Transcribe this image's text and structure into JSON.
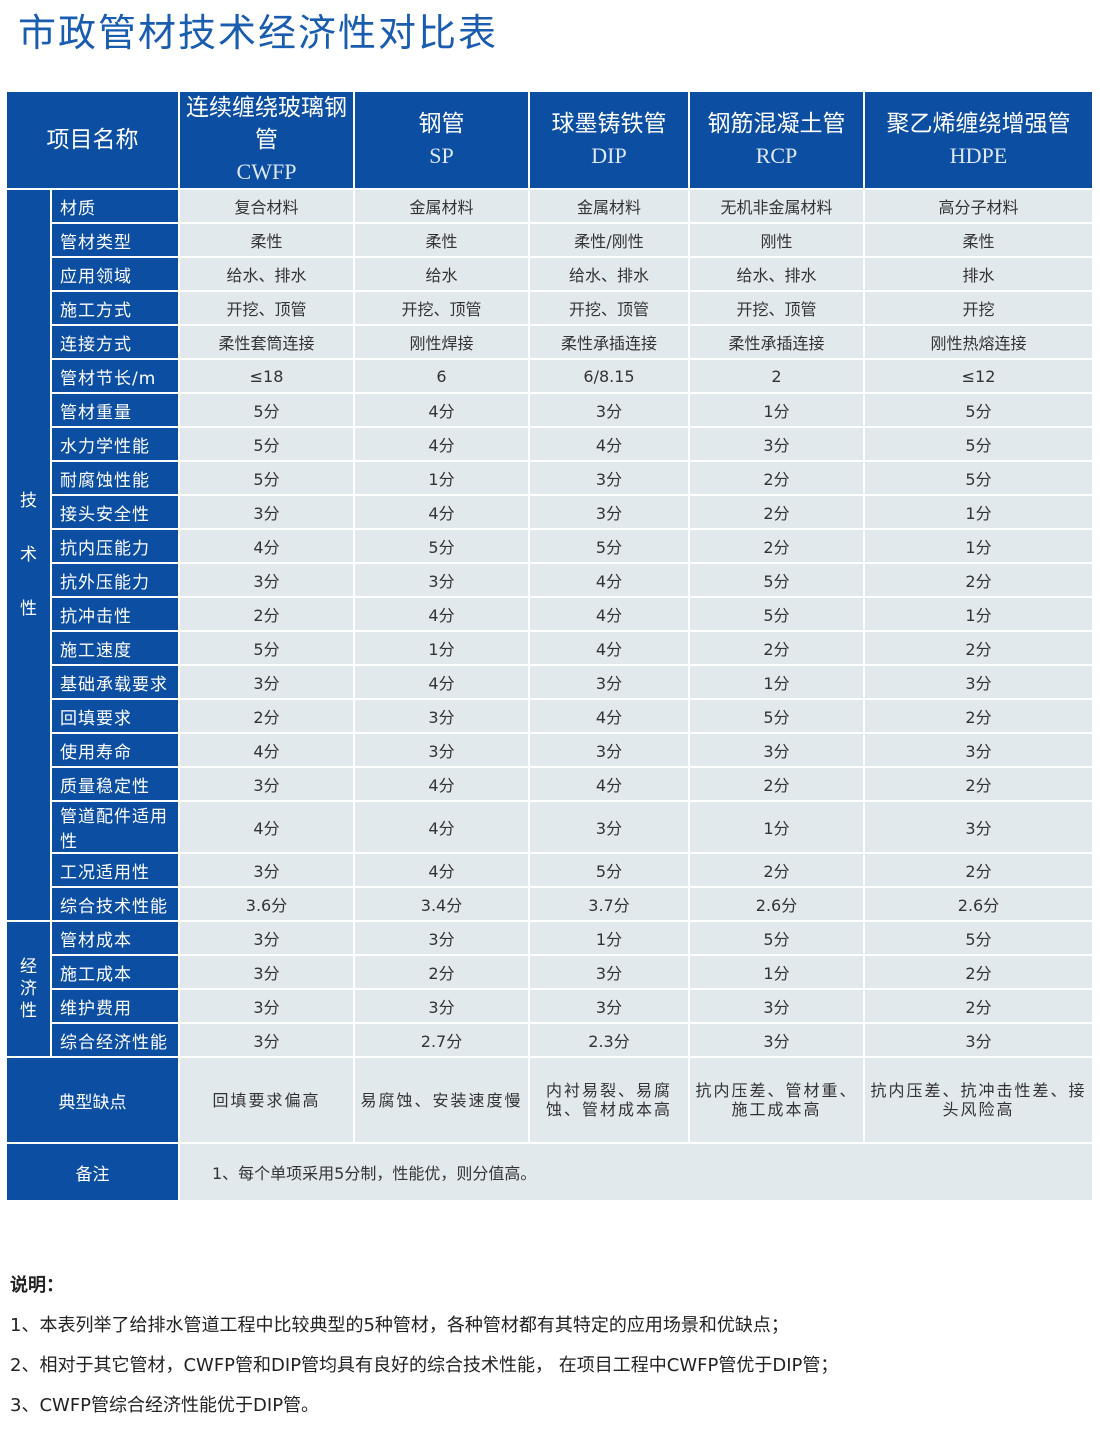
{
  "title": "市政管材技术经济性对比表",
  "colors": {
    "header_blue": "#0c4ea2",
    "cell_bg": "#e2e9ed",
    "title_blue": "#1a5cb0"
  },
  "header": {
    "item_name": "项目名称",
    "columns": [
      {
        "cn": "连续缠绕玻璃钢管",
        "en": "CWFP"
      },
      {
        "cn": "钢管",
        "en": "SP"
      },
      {
        "cn": "球墨铸铁管",
        "en": "DIP"
      },
      {
        "cn": "钢筋混凝土管",
        "en": "RCP"
      },
      {
        "cn": "聚乙烯缠绕增强管",
        "en": "HDPE"
      }
    ]
  },
  "technical": {
    "category": "技术性",
    "rows": [
      {
        "item": "材质",
        "values": [
          "复合材料",
          "金属材料",
          "金属材料",
          "无机非金属材料",
          "高分子材料"
        ]
      },
      {
        "item": "管材类型",
        "values": [
          "柔性",
          "柔性",
          "柔性/刚性",
          "刚性",
          "柔性"
        ]
      },
      {
        "item": "应用领域",
        "values": [
          "给水、排水",
          "给水",
          "给水、排水",
          "给水、排水",
          "排水"
        ]
      },
      {
        "item": "施工方式",
        "values": [
          "开挖、顶管",
          "开挖、顶管",
          "开挖、顶管",
          "开挖、顶管",
          "开挖"
        ]
      },
      {
        "item": "连接方式",
        "values": [
          "柔性套筒连接",
          "刚性焊接",
          "柔性承插连接",
          "柔性承插连接",
          "刚性热熔连接"
        ]
      },
      {
        "item": "管材节长/m",
        "values": [
          "≤18",
          "6",
          "6/8.15",
          "2",
          "≤12"
        ]
      },
      {
        "item": "管材重量",
        "values": [
          "5分",
          "4分",
          "3分",
          "1分",
          "5分"
        ]
      },
      {
        "item": "水力学性能",
        "values": [
          "5分",
          "4分",
          "4分",
          "3分",
          "5分"
        ]
      },
      {
        "item": "耐腐蚀性能",
        "values": [
          "5分",
          "1分",
          "3分",
          "2分",
          "5分"
        ]
      },
      {
        "item": "接头安全性",
        "values": [
          "3分",
          "4分",
          "3分",
          "2分",
          "1分"
        ]
      },
      {
        "item": "抗内压能力",
        "values": [
          "4分",
          "5分",
          "5分",
          "2分",
          "1分"
        ]
      },
      {
        "item": "抗外压能力",
        "values": [
          "3分",
          "3分",
          "4分",
          "5分",
          "2分"
        ]
      },
      {
        "item": "抗冲击性",
        "values": [
          "2分",
          "4分",
          "4分",
          "5分",
          "1分"
        ]
      },
      {
        "item": "施工速度",
        "values": [
          "5分",
          "1分",
          "4分",
          "2分",
          "2分"
        ]
      },
      {
        "item": "基础承载要求",
        "values": [
          "3分",
          "4分",
          "3分",
          "1分",
          "3分"
        ]
      },
      {
        "item": "回填要求",
        "values": [
          "2分",
          "3分",
          "4分",
          "5分",
          "2分"
        ]
      },
      {
        "item": "使用寿命",
        "values": [
          "4分",
          "3分",
          "3分",
          "3分",
          "3分"
        ]
      },
      {
        "item": "质量稳定性",
        "values": [
          "3分",
          "4分",
          "4分",
          "2分",
          "2分"
        ]
      },
      {
        "item": "管道配件适用性",
        "values": [
          "4分",
          "4分",
          "3分",
          "1分",
          "3分"
        ]
      },
      {
        "item": "工况适用性",
        "values": [
          "3分",
          "4分",
          "5分",
          "2分",
          "2分"
        ]
      },
      {
        "item": "综合技术性能",
        "values": [
          "3.6分",
          "3.4分",
          "3.7分",
          "2.6分",
          "2.6分"
        ]
      }
    ]
  },
  "economic": {
    "category": "经济性",
    "rows": [
      {
        "item": "管材成本",
        "values": [
          "3分",
          "3分",
          "1分",
          "5分",
          "5分"
        ]
      },
      {
        "item": "施工成本",
        "values": [
          "3分",
          "2分",
          "3分",
          "1分",
          "2分"
        ]
      },
      {
        "item": "维护费用",
        "values": [
          "3分",
          "3分",
          "3分",
          "3分",
          "2分"
        ]
      },
      {
        "item": "综合经济性能",
        "values": [
          "3分",
          "2.7分",
          "2.3分",
          "3分",
          "3分"
        ]
      }
    ]
  },
  "defects": {
    "label": "典型缺点",
    "values": [
      "回填要求偏高",
      "易腐蚀、安装速度慢",
      "内衬易裂、易腐蚀、管材成本高",
      "抗内压差、管材重、施工成本高",
      "抗内压差、抗冲击性差、接头风险高"
    ]
  },
  "note": {
    "label": "备注",
    "text": "1、每个单项采用5分制，性能优，则分值高。"
  },
  "explanation": {
    "heading": "说明：",
    "lines": [
      "1、本表列举了给排水管道工程中比较典型的5种管材，各种管材都有其特定的应用场景和优缺点；",
      "2、相对于其它管材，CWFP管和DIP管均具有良好的综合技术性能， 在项目工程中CWFP管优于DIP管；",
      "3、CWFP管综合经济性能优于DIP管。"
    ]
  }
}
